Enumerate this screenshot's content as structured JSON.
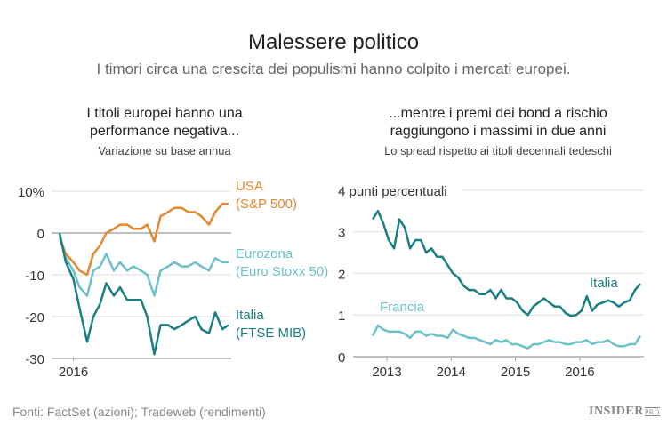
{
  "header": {
    "title": "Malessere politico",
    "subtitle": "I timori circa una crescita dei populismi hanno colpito i mercati europei."
  },
  "footer": {
    "source": "Fonti: FactSet (azioni); Tradeweb (rendimenti)",
    "logo": "INSIDER",
    "logo_sub": "PRO"
  },
  "colors": {
    "usa": "#e8862e",
    "eurozona": "#6cc1c9",
    "italia": "#1a7f82",
    "francia": "#6cc1c9",
    "grid": "#dddddd",
    "axis": "#aaaaaa"
  },
  "chart_data": [
    {
      "type": "line",
      "title": "I titoli europei hanno una performance negativa...",
      "subtitle": "Variazione su base annua",
      "ylim": [
        -30,
        10
      ],
      "yticks": [
        {
          "v": 10,
          "label": "10%"
        },
        {
          "v": 0,
          "label": "0"
        },
        {
          "v": -10,
          "label": "-10"
        },
        {
          "v": -20,
          "label": "-20"
        },
        {
          "v": -30,
          "label": "-30"
        }
      ],
      "xticks": [
        {
          "v": "2016-01-01",
          "label": "2016"
        }
      ],
      "xlim": [
        "2015-12-01",
        "2016-12-15"
      ],
      "grid": true,
      "x": [
        "2015-12-01",
        "2015-12-15",
        "2016-01-01",
        "2016-01-15",
        "2016-02-01",
        "2016-02-15",
        "2016-03-01",
        "2016-03-15",
        "2016-04-01",
        "2016-04-15",
        "2016-05-01",
        "2016-05-15",
        "2016-06-01",
        "2016-06-15",
        "2016-07-01",
        "2016-07-15",
        "2016-08-01",
        "2016-08-15",
        "2016-09-01",
        "2016-09-15",
        "2016-10-01",
        "2016-10-15",
        "2016-11-01",
        "2016-11-15",
        "2016-12-01",
        "2016-12-15"
      ],
      "series": [
        {
          "name": "USA",
          "name2": "(S&P 500)",
          "color_key": "usa",
          "values": [
            -1,
            -5,
            -7,
            -9,
            -10,
            -5,
            -3,
            0,
            1,
            2,
            2,
            1,
            1,
            2,
            -2,
            4,
            5,
            6,
            6,
            5,
            5,
            4,
            2,
            5,
            7,
            7
          ]
        },
        {
          "name": "Eurozona",
          "name2": "(Euro Stoxx 50)",
          "color_key": "eurozona",
          "values": [
            -1,
            -6,
            -9,
            -13,
            -15,
            -9,
            -8,
            -5,
            -9,
            -7,
            -9,
            -8,
            -9,
            -10,
            -15,
            -9,
            -8,
            -7,
            -8,
            -8,
            -7,
            -8,
            -9,
            -6,
            -7,
            -7
          ]
        },
        {
          "name": "Italia",
          "name2": "(FTSE MIB)",
          "color_key": "italia",
          "values": [
            0,
            -7,
            -11,
            -18,
            -26,
            -20,
            -17,
            -12,
            -15,
            -13,
            -16,
            -16,
            -16,
            -20,
            -29,
            -22,
            -22,
            -23,
            -22,
            -21,
            -20,
            -23,
            -24,
            -19,
            -23,
            -22
          ]
        }
      ]
    },
    {
      "type": "line",
      "title": "...mentre i premi dei bond a rischio raggiungono i massimi in due anni",
      "subtitle": "Lo spread rispetto ai titoli decennali tedeschi",
      "ylim": [
        0,
        4
      ],
      "yticks": [
        {
          "v": 4,
          "label": "4 punti percentuali"
        },
        {
          "v": 3,
          "label": "3"
        },
        {
          "v": 2,
          "label": "2"
        },
        {
          "v": 1,
          "label": "1"
        },
        {
          "v": 0,
          "label": "0"
        }
      ],
      "xticks": [
        {
          "v": 2013,
          "label": "2013"
        },
        {
          "v": 2014,
          "label": "2014"
        },
        {
          "v": 2015,
          "label": "2015"
        },
        {
          "v": 2016,
          "label": "2016"
        }
      ],
      "xstart": "2012-10",
      "grid": true,
      "series": [
        {
          "name": "Italia",
          "color_key": "italia",
          "values": [
            3.3,
            3.5,
            3.2,
            2.8,
            2.6,
            3.3,
            3.1,
            2.6,
            2.8,
            2.8,
            2.5,
            2.6,
            2.4,
            2.4,
            2.2,
            2.0,
            1.9,
            1.7,
            1.6,
            1.6,
            1.5,
            1.5,
            1.6,
            1.4,
            1.6,
            1.4,
            1.4,
            1.3,
            1.1,
            1.0,
            1.2,
            1.3,
            1.4,
            1.3,
            1.2,
            1.2,
            1.05,
            0.98,
            1.0,
            1.1,
            1.45,
            1.1,
            1.25,
            1.3,
            1.35,
            1.3,
            1.2,
            1.3,
            1.35,
            1.6,
            1.75
          ]
        },
        {
          "name": "Francia",
          "color_key": "francia",
          "values": [
            0.5,
            0.75,
            0.65,
            0.6,
            0.6,
            0.6,
            0.55,
            0.45,
            0.6,
            0.6,
            0.5,
            0.55,
            0.5,
            0.5,
            0.45,
            0.65,
            0.55,
            0.5,
            0.45,
            0.45,
            0.4,
            0.35,
            0.3,
            0.4,
            0.35,
            0.4,
            0.3,
            0.3,
            0.25,
            0.2,
            0.3,
            0.3,
            0.35,
            0.4,
            0.35,
            0.35,
            0.3,
            0.3,
            0.35,
            0.35,
            0.4,
            0.3,
            0.35,
            0.35,
            0.4,
            0.3,
            0.25,
            0.25,
            0.3,
            0.3,
            0.5
          ]
        }
      ]
    }
  ]
}
